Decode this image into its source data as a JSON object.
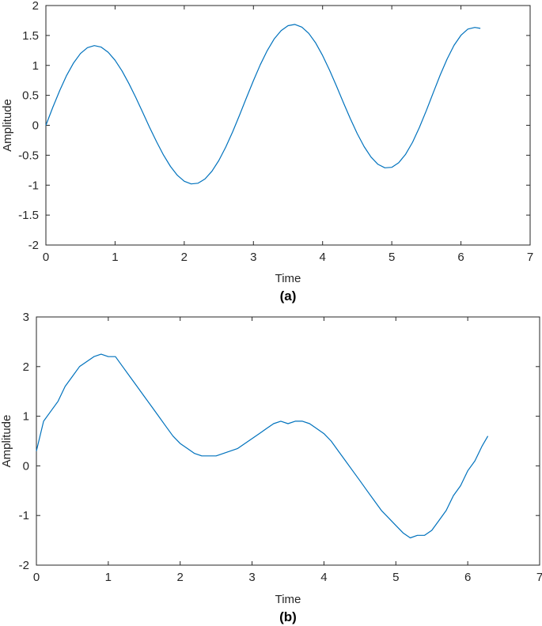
{
  "chart_data": [
    {
      "type": "line",
      "caption": "(a)",
      "xlabel": "Time",
      "ylabel": "Amplitude",
      "xlim": [
        0,
        7
      ],
      "ylim": [
        -2,
        2
      ],
      "xticks": [
        "0",
        "1",
        "2",
        "3",
        "4",
        "5",
        "6",
        "7"
      ],
      "yticks": [
        "-2",
        "-1.5",
        "-1",
        "-0.5",
        "0",
        "0.5",
        "1",
        "1.5",
        "2"
      ],
      "grid": false,
      "color": "#0072bd",
      "series": [
        {
          "x": [
            0,
            0.1,
            0.2,
            0.3,
            0.4,
            0.5,
            0.6,
            0.7,
            0.8,
            0.9,
            1.0,
            1.1,
            1.2,
            1.3,
            1.4,
            1.5,
            1.6,
            1.7,
            1.8,
            1.9,
            2.0,
            2.1,
            2.2,
            2.3,
            2.4,
            2.5,
            2.6,
            2.7,
            2.8,
            2.9,
            3.0,
            3.1,
            3.2,
            3.3,
            3.4,
            3.5,
            3.6,
            3.7,
            3.8,
            3.9,
            4.0,
            4.1,
            4.2,
            4.3,
            4.4,
            4.5,
            4.6,
            4.7,
            4.8,
            4.9,
            5.0,
            5.1,
            5.2,
            5.3,
            5.4,
            5.5,
            5.6,
            5.7,
            5.8,
            5.9,
            6.0,
            6.1,
            6.2,
            6.28
          ],
          "y": [
            0,
            0.298,
            0.581,
            0.833,
            1.042,
            1.199,
            1.296,
            1.331,
            1.305,
            1.22,
            1.086,
            0.908,
            0.697,
            0.462,
            0.214,
            -0.035,
            -0.276,
            -0.496,
            -0.686,
            -0.834,
            -0.934,
            -0.98,
            -0.967,
            -0.896,
            -0.768,
            -0.588,
            -0.364,
            -0.107,
            0.172,
            0.461,
            0.746,
            1.013,
            1.249,
            1.441,
            1.582,
            1.664,
            1.684,
            1.64,
            1.535,
            1.374,
            1.166,
            0.922,
            0.656,
            0.381,
            0.112,
            -0.137,
            -0.356,
            -0.531,
            -0.652,
            -0.71,
            -0.702,
            -0.626,
            -0.485,
            -0.284,
            -0.034,
            0.248,
            0.545,
            0.838,
            1.107,
            1.334,
            1.504,
            1.606,
            1.634,
            1.619
          ]
        }
      ]
    },
    {
      "type": "line",
      "caption": "(b)",
      "xlabel": "Time",
      "ylabel": "Amplitude",
      "xlim": [
        0,
        7
      ],
      "ylim": [
        -2,
        3
      ],
      "xticks": [
        "0",
        "1",
        "2",
        "3",
        "4",
        "5",
        "6",
        "7"
      ],
      "yticks": [
        "-2",
        "-1",
        "0",
        "1",
        "2",
        "3"
      ],
      "grid": false,
      "color": "#0072bd",
      "series": [
        {
          "x": [
            0,
            0.1,
            0.2,
            0.3,
            0.4,
            0.5,
            0.6,
            0.7,
            0.8,
            0.9,
            1.0,
            1.1,
            1.2,
            1.3,
            1.4,
            1.5,
            1.6,
            1.7,
            1.8,
            1.9,
            2.0,
            2.1,
            2.2,
            2.3,
            2.4,
            2.5,
            2.6,
            2.7,
            2.8,
            2.9,
            3.0,
            3.1,
            3.2,
            3.3,
            3.4,
            3.5,
            3.6,
            3.7,
            3.8,
            3.9,
            4.0,
            4.1,
            4.2,
            4.3,
            4.4,
            4.5,
            4.6,
            4.7,
            4.8,
            4.9,
            5.0,
            5.1,
            5.2,
            5.3,
            5.4,
            5.5,
            5.6,
            5.7,
            5.8,
            5.9,
            6.0,
            6.1,
            6.2,
            6.28
          ],
          "y": [
            0.3,
            0.9,
            1.1,
            1.3,
            1.6,
            1.8,
            2.0,
            2.1,
            2.2,
            2.25,
            2.2,
            2.2,
            2.0,
            1.8,
            1.6,
            1.4,
            1.2,
            1.0,
            0.8,
            0.6,
            0.45,
            0.35,
            0.25,
            0.2,
            0.2,
            0.2,
            0.25,
            0.3,
            0.35,
            0.45,
            0.55,
            0.65,
            0.75,
            0.85,
            0.9,
            0.85,
            0.9,
            0.9,
            0.85,
            0.75,
            0.65,
            0.5,
            0.3,
            0.1,
            -0.1,
            -0.3,
            -0.5,
            -0.7,
            -0.9,
            -1.05,
            -1.2,
            -1.35,
            -1.45,
            -1.4,
            -1.4,
            -1.3,
            -1.1,
            -0.9,
            -0.6,
            -0.4,
            -0.1,
            0.1,
            0.4,
            0.6
          ]
        }
      ]
    }
  ]
}
